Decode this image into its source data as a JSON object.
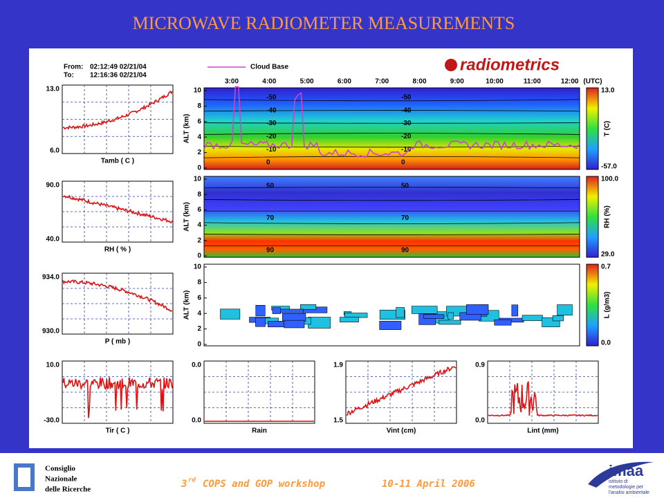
{
  "title": "MICROWAVE RADIOMETER MEASUREMENTS",
  "header": {
    "from_label": "From:",
    "from": "02:12:49 02/21/04",
    "to_label": "To:",
    "to": "12:16:36 02/21/04",
    "legend": "Cloud Base",
    "brand": "radiometrics"
  },
  "time_axis": {
    "labels": [
      "3:00",
      "4:00",
      "5:00",
      "6:00",
      "7:00",
      "8:00",
      "9:00",
      "10:00",
      "11:00",
      "12:00"
    ],
    "unit": "(UTC)"
  },
  "left_panels": [
    {
      "top": "13.0",
      "bottom": "6.0",
      "label": "Tamb ( C )"
    },
    {
      "top": "90.0",
      "bottom": "40.0",
      "label": "RH ( % )"
    },
    {
      "top": "934.0",
      "bottom": "930.0",
      "label": "P ( mb )"
    },
    {
      "top": "10.0",
      "bottom": "-30.0",
      "label": "Tir ( C )"
    }
  ],
  "bottom_panels": [
    {
      "top": "0.0",
      "bottom": "0.0",
      "label": "Rain"
    },
    {
      "top": "1.9",
      "bottom": "1.5",
      "label": "Vint (cm)"
    },
    {
      "top": "0.9",
      "bottom": "0.0",
      "label": "Lint (mm)"
    }
  ],
  "profiles": {
    "ylabel": "ALT (km)",
    "yticks": [
      0,
      2,
      4,
      6,
      8,
      10
    ],
    "panels": [
      {
        "bar_top": "13.0",
        "bar_bottom": "-57.0",
        "bar_label": "T (C)",
        "contours": [
          "-50",
          "-40",
          "-30",
          "-20",
          "-10",
          "0"
        ]
      },
      {
        "bar_top": "100.0",
        "bar_bottom": "29.0",
        "bar_label": "RH (%)",
        "contours": [
          "50",
          "70",
          "90"
        ]
      },
      {
        "bar_top": "0.7",
        "bar_bottom": "0.0",
        "bar_label": "L (g/m3)",
        "contours": []
      }
    ]
  },
  "footer": {
    "org": [
      "Consiglio",
      "Nazionale",
      "delle Ricerche"
    ],
    "ordinal": "3",
    "ordinal_suffix": "rd",
    "workshop": "COPS and GOP workshop",
    "dates": "10-11 April 2006",
    "imaa": {
      "name": "imaa",
      "lines": [
        "istituto di",
        "metodologie per",
        "l'analisi ambientale"
      ]
    }
  }
}
